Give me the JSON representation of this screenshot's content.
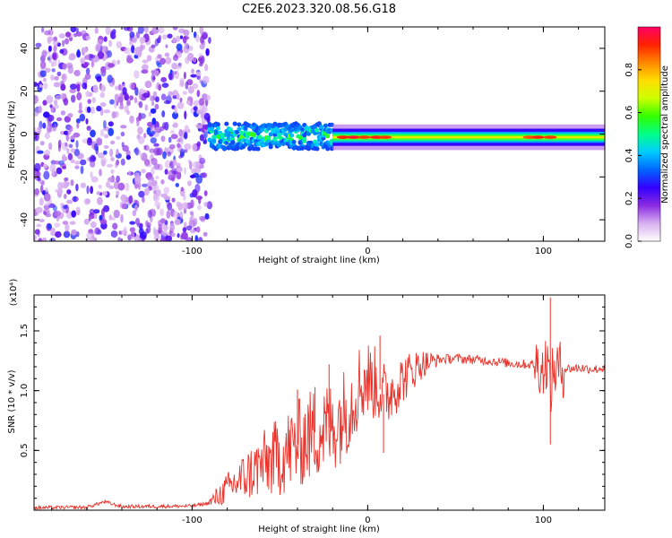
{
  "title": "C2E6.2023.320.08.56.G18",
  "chart_data": [
    {
      "type": "heatmap",
      "title": "",
      "xlabel": "Height of straight line (km)",
      "ylabel": "Frequency (Hz)",
      "xlim": [
        -190,
        135
      ],
      "ylim": [
        -50,
        50
      ],
      "xticks": [
        -100,
        0,
        100
      ],
      "yticks": [
        -40,
        -20,
        0,
        20,
        40
      ],
      "colorbar": {
        "label": "Normalized spectral amplitude",
        "range": [
          0,
          1
        ],
        "ticks": [
          "0.0",
          "0.2",
          "0.4",
          "0.6",
          "0.8"
        ],
        "colors": [
          "#ffffff",
          "#d8b0f0",
          "#8a2be2",
          "#3300ff",
          "#0066ff",
          "#00ccff",
          "#00ff88",
          "#33ff00",
          "#ccff00",
          "#ffdd00",
          "#ff8800",
          "#ff2200",
          "#ff0066"
        ]
      },
      "regions": [
        {
          "x_from": -190,
          "x_to": -90,
          "description": "broadband noise spread over full frequency range, amplitude ~0.1-0.3"
        },
        {
          "x_from": -90,
          "x_to": -20,
          "freq_center_hz": -1,
          "freq_halfwidth_hz": 6,
          "amplitude": "0.3-0.6"
        },
        {
          "x_from": -20,
          "x_to": 135,
          "freq_center_hz": -1.5,
          "freq_halfwidth_hz": 2.5,
          "amplitude": "0.5-0.95"
        }
      ]
    },
    {
      "type": "line",
      "title": "",
      "xlabel": "Height of straight line (km)",
      "ylabel": "SNR (10 * v/v)",
      "yscale_label": "(x10⁴)",
      "xlim": [
        -190,
        135
      ],
      "ylim": [
        0,
        18000
      ],
      "xticks": [
        -100,
        0,
        100
      ],
      "yticks": [
        5000,
        10000,
        15000
      ],
      "ytick_labels": [
        "0.5",
        "1.0",
        "1.5"
      ],
      "color": "#e8322a",
      "series": [
        {
          "x": [
            -190,
            -160,
            -150,
            -140,
            -100,
            -90,
            -80,
            -70,
            -60,
            -50,
            -40,
            -30,
            -20,
            -10,
            -5,
            0,
            5,
            10,
            20,
            30,
            40,
            50,
            60,
            70,
            80,
            90,
            98,
            100,
            102,
            104,
            106,
            110,
            120,
            130,
            135
          ],
          "y": [
            200,
            250,
            700,
            300,
            350,
            600,
            1800,
            2800,
            3800,
            4500,
            5500,
            6500,
            7000,
            8800,
            10500,
            11000,
            10500,
            9500,
            11000,
            12200,
            12600,
            12700,
            12600,
            12500,
            12300,
            12200,
            12200,
            11600,
            12800,
            10000,
            11800,
            11800,
            11900,
            11800,
            11900
          ]
        }
      ],
      "spikes": [
        {
          "x": 104,
          "y": 17800
        },
        {
          "x": 104,
          "y": 5500
        },
        {
          "x": 7,
          "y": 14600
        },
        {
          "x": 9,
          "y": 4800
        },
        {
          "x": -40,
          "y": 10100
        },
        {
          "x": -30,
          "y": 10300
        },
        {
          "x": -22,
          "y": 12200
        }
      ]
    }
  ]
}
